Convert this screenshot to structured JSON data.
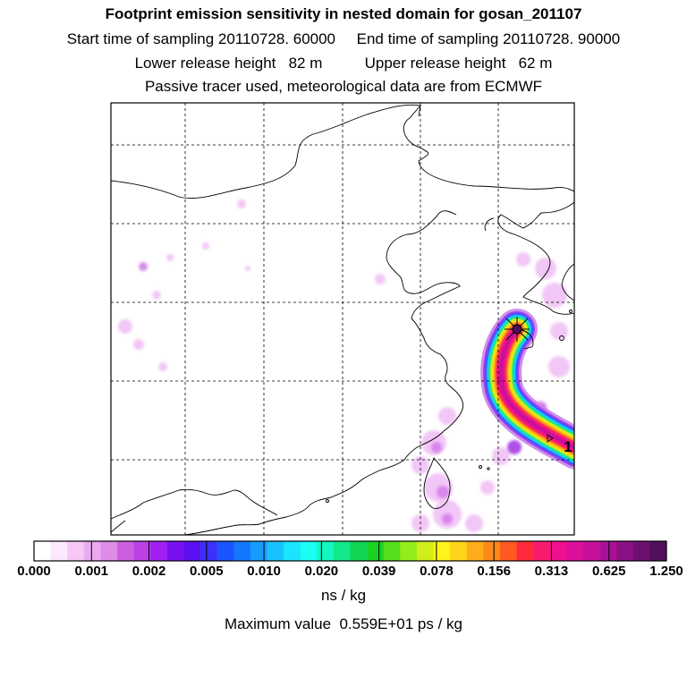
{
  "header": {
    "title": "Footprint emission sensitivity in nested domain for gosan_201107",
    "sampling_start": "Start time of sampling 20110728. 60000",
    "sampling_end": "End time of sampling 20110728. 90000",
    "lower_release": "Lower release height   82 m",
    "upper_release": "Upper release height   62 m",
    "tracer_info": "Passive tracer used, meteorological data are from ECMWF"
  },
  "map": {
    "grid_style": "dashed",
    "release_marker": "star",
    "release_label": "1"
  },
  "colorbar": {
    "colors": [
      "#ffffff",
      "#fde9fd",
      "#f6c7f7",
      "#ebaaf0",
      "#df8ce8",
      "#cc5ee0",
      "#bc40e6",
      "#a21ff5",
      "#7a10f0",
      "#5a10f0",
      "#3d30ff",
      "#1b55ff",
      "#1478ff",
      "#169cff",
      "#18c2ff",
      "#1ae4ff",
      "#19fff5",
      "#13f7c0",
      "#11e98a",
      "#12d455",
      "#19d322",
      "#56e01c",
      "#96ec1b",
      "#cfee1a",
      "#fff51a",
      "#ffd41a",
      "#ffad1a",
      "#ff8a1a",
      "#ff5a22",
      "#ff2a3a",
      "#fa1a70",
      "#f0108f",
      "#dd0f9a",
      "#c6109a",
      "#aa1096",
      "#8c1085",
      "#6e1070",
      "#50105a"
    ],
    "tick_labels": [
      "0.000",
      "0.001",
      "0.002",
      "0.005",
      "0.010",
      "0.020",
      "0.039",
      "0.078",
      "0.156",
      "0.313",
      "0.625",
      "1.250"
    ],
    "units": "ns / kg",
    "max_value": "Maximum value  0.559E+01 ps / kg"
  }
}
